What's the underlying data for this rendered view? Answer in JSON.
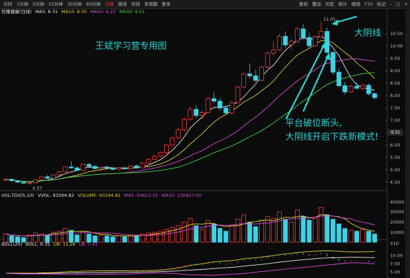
{
  "toolbar": {
    "tabs": [
      "分时",
      "1分钟",
      "5分钟",
      "15分钟",
      "30分钟",
      "60分钟",
      "日线",
      "周线",
      "月线",
      "多周期",
      "更多"
    ],
    "active_tab": "日线",
    "right": [
      "复权",
      "叠加",
      "历史",
      "统计",
      "画线",
      "F10",
      "标记",
      "-",
      "□",
      "+"
    ]
  },
  "legend": {
    "stock": "信隆健康(日线)",
    "ma5": "MA5: 8.31",
    "ma10": "MA10: 8.50",
    "ma20": "MA20: 9.25",
    "ma30": "MA30: 9.21"
  },
  "volume_legend": {
    "name": "VOL-TDX(5,10)",
    "vvol": "VVOL: 93294.82",
    "volume": "VOLUME: 93294.82",
    "ma5": "MA5: 94613.55",
    "ma10": "MA10: 130827.00"
  },
  "boll_legend": {
    "name": "BOLL(20)",
    "boll": "BOLL: 9.35",
    "ub": "UB: 11.26",
    "lb": "LB: 7.43"
  },
  "price_axis": [
    "10.50",
    "10.00",
    "9.50",
    "9.00",
    "8.50",
    "8.00",
    "7.50",
    "7.00",
    "6.50",
    "6.00",
    "5.50",
    "5.00",
    "4.50"
  ],
  "price_tag": "6.31",
  "volume_axis": [
    "40000",
    "30000",
    "20000",
    "10000",
    "X10"
  ],
  "boll_axis": [
    "10.00",
    "7.50",
    "5.00"
  ],
  "low_label": "4.37",
  "high_label": "11.01",
  "colors": {
    "up": "#ff3b3b",
    "down": "#3fd1e6",
    "ma5": "#e8e8e8",
    "ma10": "#e3d23a",
    "ma20": "#e04ce0",
    "ma30": "#3ddc3d",
    "annotation": "#2ad6d6"
  },
  "annotations": {
    "watermark": "王斌学习营专用图",
    "big_bear": "大阴线",
    "line1": "平台破位断头,",
    "line2": "大阴线开启下跌新模式!"
  },
  "chart_data": {
    "type": "candlestick",
    "ylim": [
      4.3,
      11.2
    ],
    "candles": [
      [
        4.6,
        4.65,
        4.55,
        4.62
      ],
      [
        4.62,
        4.64,
        4.52,
        4.56
      ],
      [
        4.56,
        4.6,
        4.48,
        4.5
      ],
      [
        4.5,
        4.55,
        4.44,
        4.46
      ],
      [
        4.46,
        4.52,
        4.37,
        4.48
      ],
      [
        4.48,
        4.62,
        4.46,
        4.6
      ],
      [
        4.6,
        4.75,
        4.58,
        4.72
      ],
      [
        4.72,
        4.8,
        4.62,
        4.66
      ],
      [
        4.66,
        4.82,
        4.64,
        4.8
      ],
      [
        4.8,
        4.95,
        4.76,
        4.92
      ],
      [
        4.92,
        5.15,
        4.9,
        5.12
      ],
      [
        5.12,
        5.35,
        5.05,
        5.08
      ],
      [
        5.08,
        5.12,
        4.95,
        4.98
      ],
      [
        4.98,
        5.25,
        4.96,
        5.22
      ],
      [
        5.22,
        5.3,
        5.1,
        5.14
      ],
      [
        5.14,
        5.2,
        5.02,
        5.05
      ],
      [
        5.05,
        5.12,
        4.98,
        5.1
      ],
      [
        5.1,
        5.16,
        5.02,
        5.06
      ],
      [
        5.06,
        5.12,
        4.98,
        5.02
      ],
      [
        5.02,
        5.1,
        4.98,
        5.08
      ],
      [
        5.08,
        5.14,
        5.02,
        5.04
      ],
      [
        5.04,
        5.18,
        5.02,
        5.16
      ],
      [
        5.16,
        5.22,
        5.05,
        5.08
      ],
      [
        5.08,
        5.3,
        5.06,
        5.28
      ],
      [
        5.28,
        5.45,
        5.25,
        5.42
      ],
      [
        5.42,
        5.6,
        5.38,
        5.55
      ],
      [
        5.55,
        5.75,
        5.5,
        5.7
      ],
      [
        5.7,
        6.05,
        5.65,
        6.0
      ],
      [
        6.0,
        6.35,
        5.95,
        6.3
      ],
      [
        6.3,
        6.7,
        6.25,
        6.62
      ],
      [
        6.62,
        7.1,
        6.55,
        7.05
      ],
      [
        7.05,
        7.55,
        6.98,
        7.45
      ],
      [
        7.45,
        7.6,
        7.1,
        7.2
      ],
      [
        7.2,
        7.4,
        7.05,
        7.32
      ],
      [
        7.32,
        7.95,
        7.28,
        7.88
      ],
      [
        7.88,
        8.15,
        7.7,
        7.78
      ],
      [
        7.78,
        7.9,
        7.4,
        7.5
      ],
      [
        7.5,
        7.6,
        7.25,
        7.3
      ],
      [
        7.3,
        7.8,
        7.25,
        7.72
      ],
      [
        7.72,
        8.4,
        7.7,
        8.35
      ],
      [
        8.35,
        8.95,
        8.28,
        8.88
      ],
      [
        8.88,
        9.3,
        8.7,
        8.8
      ],
      [
        8.8,
        9.05,
        8.55,
        8.62
      ],
      [
        8.62,
        9.2,
        8.58,
        9.15
      ],
      [
        9.15,
        9.8,
        9.1,
        9.72
      ],
      [
        9.72,
        10.2,
        9.6,
        9.85
      ],
      [
        9.85,
        10.5,
        9.8,
        10.4
      ],
      [
        10.4,
        10.6,
        9.95,
        10.05
      ],
      [
        10.05,
        10.3,
        9.85,
        10.2
      ],
      [
        10.2,
        10.8,
        10.1,
        10.7
      ],
      [
        10.7,
        10.9,
        10.25,
        10.35
      ],
      [
        10.35,
        10.55,
        9.9,
        10.02
      ],
      [
        10.02,
        10.45,
        9.98,
        10.38
      ],
      [
        10.38,
        11.01,
        10.3,
        10.6
      ],
      [
        10.6,
        10.75,
        9.7,
        9.75
      ],
      [
        9.75,
        9.8,
        8.85,
        8.95
      ],
      [
        8.95,
        9.1,
        8.35,
        8.4
      ],
      [
        8.4,
        8.55,
        8.05,
        8.15
      ],
      [
        8.15,
        8.45,
        8.1,
        8.38
      ],
      [
        8.38,
        8.55,
        8.25,
        8.3
      ],
      [
        8.3,
        8.48,
        8.2,
        8.42
      ],
      [
        8.42,
        8.5,
        8.0,
        8.08
      ],
      [
        8.08,
        8.12,
        7.85,
        7.92
      ]
    ],
    "volume": [
      9,
      7,
      6,
      5,
      8,
      10,
      9,
      8,
      11,
      12,
      15,
      13,
      8,
      12,
      9,
      7,
      8,
      7,
      6,
      7,
      6,
      8,
      7,
      9,
      10,
      11,
      12,
      14,
      16,
      18,
      22,
      26,
      18,
      14,
      24,
      20,
      15,
      12,
      18,
      25,
      30,
      22,
      17,
      24,
      28,
      26,
      33,
      25,
      22,
      35,
      28,
      24,
      26,
      38,
      30,
      25,
      20,
      15,
      13,
      12,
      14,
      12,
      9
    ],
    "volume_ylim": [
      0,
      45000
    ]
  }
}
